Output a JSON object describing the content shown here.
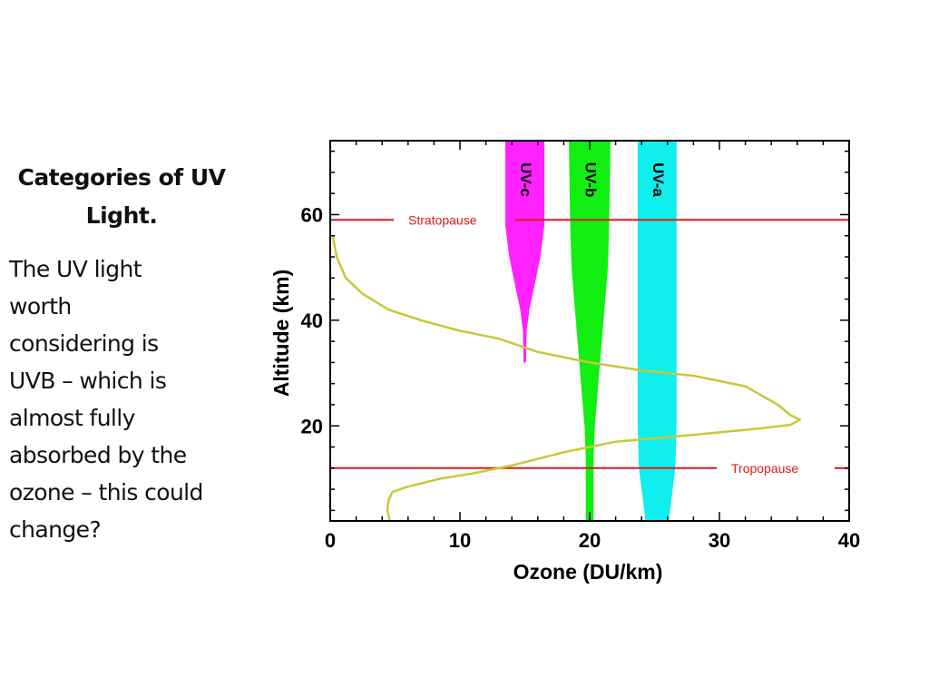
{
  "slide": {
    "title": "Categories of UV Light.",
    "body_lines": [
      "The UV light",
      "worth",
      "considering is",
      "UVB – which is",
      "almost fully",
      "absorbed by the",
      "ozone – this could",
      "change?"
    ]
  },
  "chart_data": {
    "type": "line",
    "xlabel": "Ozone (DU/km)",
    "ylabel": "Altitude (km)",
    "xlim": [
      0,
      40
    ],
    "ylim": [
      2,
      74
    ],
    "xticks": [
      0,
      10,
      20,
      30,
      40
    ],
    "yticks": [
      20,
      40,
      60
    ],
    "grid": false,
    "ozone_profile": {
      "color": "#c8c83a",
      "points": [
        [
          0.2,
          56
        ],
        [
          0.5,
          52
        ],
        [
          1.2,
          48
        ],
        [
          2.5,
          45
        ],
        [
          4.5,
          42
        ],
        [
          7,
          40
        ],
        [
          10,
          38
        ],
        [
          13,
          36.5
        ],
        [
          16,
          34
        ],
        [
          20,
          32
        ],
        [
          24,
          30.5
        ],
        [
          28,
          29.5
        ],
        [
          32,
          27.5
        ],
        [
          34.5,
          24
        ],
        [
          35.5,
          22
        ],
        [
          36.2,
          21.2
        ],
        [
          35.5,
          20.2
        ],
        [
          33,
          19.5
        ],
        [
          28,
          18.3
        ],
        [
          22,
          17
        ],
        [
          18,
          15
        ],
        [
          14,
          12.5
        ],
        [
          11,
          11
        ],
        [
          8.5,
          10
        ],
        [
          6,
          8.5
        ],
        [
          4.8,
          7.5
        ],
        [
          4.5,
          6
        ],
        [
          4.4,
          4
        ],
        [
          4.6,
          2
        ]
      ]
    },
    "reference_lines": [
      {
        "name": "Stratopause",
        "altitude": 59,
        "color": "#e01a1a"
      },
      {
        "name": "Tropopause",
        "altitude": 12,
        "color": "#e01a1a"
      }
    ],
    "uv_bands": [
      {
        "label": "UV-c",
        "color": "#ff22ff",
        "center": 15,
        "top": 74,
        "bottom": 32,
        "profile": [
          [
            74,
            1.5
          ],
          [
            58,
            1.5
          ],
          [
            52,
            1.2
          ],
          [
            46,
            0.7
          ],
          [
            42,
            0.35
          ],
          [
            38,
            0.15
          ],
          [
            32,
            0.1
          ]
        ]
      },
      {
        "label": "UV-b",
        "color": "#11ee11",
        "center": 20,
        "top": 74,
        "bottom": 2,
        "profile": [
          [
            74,
            1.6
          ],
          [
            58,
            1.5
          ],
          [
            50,
            1.4
          ],
          [
            44,
            1.2
          ],
          [
            38,
            1.0
          ],
          [
            32,
            0.8
          ],
          [
            26,
            0.6
          ],
          [
            20,
            0.4
          ],
          [
            14,
            0.3
          ],
          [
            2,
            0.3
          ]
        ]
      },
      {
        "label": "UV-a",
        "color": "#11eeee",
        "center": 25.2,
        "top": 74,
        "bottom": 2,
        "profile": [
          [
            74,
            1.5
          ],
          [
            20,
            1.5
          ],
          [
            12,
            1.4
          ],
          [
            8,
            1.2
          ],
          [
            4,
            1.0
          ],
          [
            2,
            0.9
          ]
        ]
      }
    ]
  }
}
